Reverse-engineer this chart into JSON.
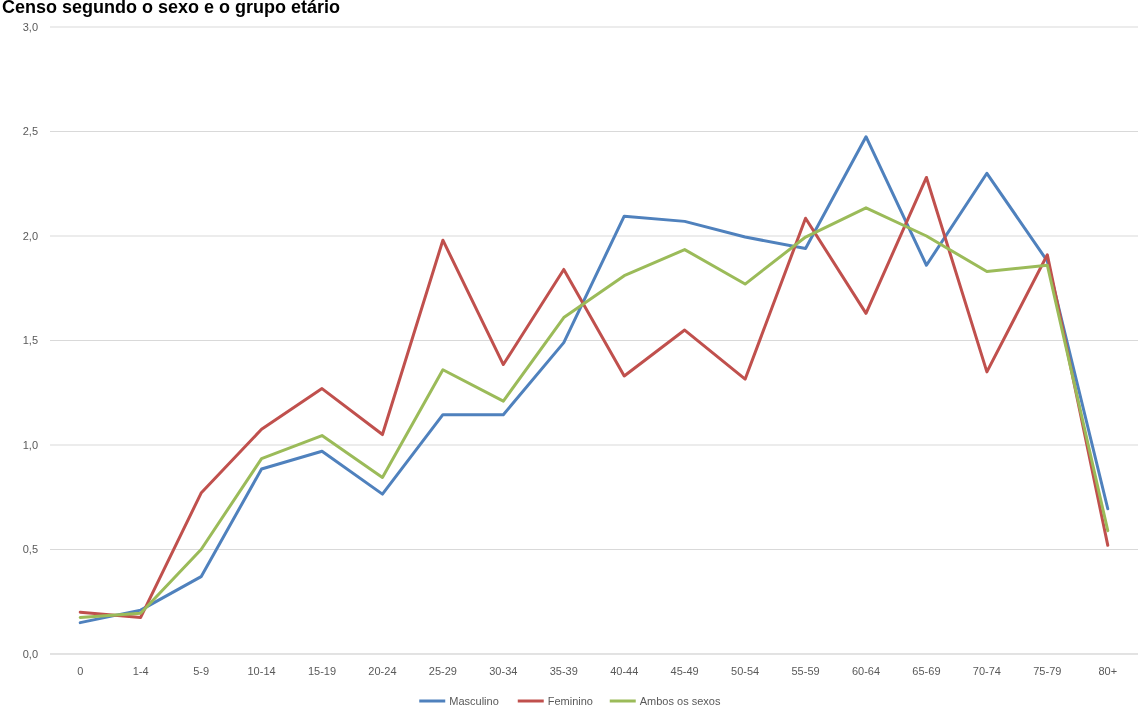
{
  "chart_data": {
    "type": "line",
    "title": "Censo segundo o sexo e o grupo etário",
    "categories": [
      "0",
      "1-4",
      "5-9",
      "10-14",
      "15-19",
      "20-24",
      "25-29",
      "30-34",
      "35-39",
      "40-44",
      "45-49",
      "50-54",
      "55-59",
      "60-64",
      "65-69",
      "70-74",
      "75-79",
      "80+"
    ],
    "series": [
      {
        "name": "Masculino",
        "color": "#4f81bd",
        "values": [
          0.15,
          0.21,
          0.37,
          0.885,
          0.97,
          0.765,
          1.145,
          1.145,
          1.49,
          2.095,
          2.07,
          1.995,
          1.94,
          2.475,
          1.86,
          2.3,
          1.88,
          0.695
        ]
      },
      {
        "name": "Feminino",
        "color": "#c0504d",
        "values": [
          0.2,
          0.175,
          0.77,
          1.075,
          1.27,
          1.05,
          1.98,
          1.385,
          1.84,
          1.33,
          1.55,
          1.315,
          2.085,
          1.63,
          2.28,
          1.35,
          1.91,
          0.52
        ]
      },
      {
        "name": "Ambos os sexos",
        "color": "#9bbb59",
        "values": [
          0.175,
          0.195,
          0.5,
          0.935,
          1.045,
          0.845,
          1.36,
          1.21,
          1.61,
          1.81,
          1.935,
          1.77,
          1.995,
          2.135,
          2.0,
          1.83,
          1.86,
          0.59
        ]
      }
    ],
    "ylim": [
      0,
      3
    ],
    "yticks": [
      {
        "value": 0,
        "label": "0,0"
      },
      {
        "value": 0.5,
        "label": "0,5"
      },
      {
        "value": 1,
        "label": "1,0"
      },
      {
        "value": 1.5,
        "label": "1,5"
      },
      {
        "value": 2,
        "label": "2,0"
      },
      {
        "value": 2.5,
        "label": "2,5"
      },
      {
        "value": 3,
        "label": "3,0"
      }
    ],
    "grid": "y",
    "legend": "bottom",
    "marker": "none",
    "line_style": "solid"
  }
}
